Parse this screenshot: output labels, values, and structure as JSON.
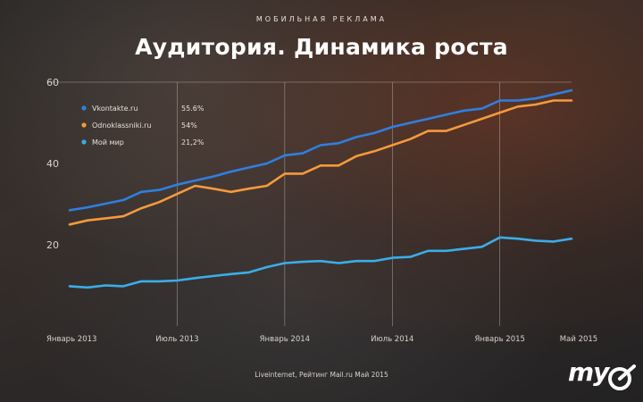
{
  "header": {
    "eyebrow": "МОБИЛЬНАЯ РЕКЛАМА",
    "title": "Аудитория. Динамика роста"
  },
  "footer": {
    "source": "Liveinternet, Рейтинг Mail.ru Май 2015"
  },
  "logo": {
    "text": "my"
  },
  "colors": {
    "vk": "#2f7fe0",
    "ok": "#f59a3c",
    "moimir": "#39aee8",
    "grid": "#e9e4df",
    "axis_text": "#d8d2cc"
  },
  "chart_data": {
    "type": "line",
    "title": "Аудитория. Динамика роста",
    "xlabel": "",
    "ylabel": "",
    "ylim": [
      0,
      60
    ],
    "y_ticks": [
      20,
      40,
      60
    ],
    "grid": true,
    "legend_placement": "top-left",
    "x_ticks": [
      "Январь 2013",
      "Июль 2013",
      "Январь 2014",
      "Июль 2014",
      "Январь 2015",
      "Май 2015"
    ],
    "x_tick_month_index": [
      0,
      6,
      12,
      18,
      24,
      28
    ],
    "series": [
      {
        "name": "Vkontakte.ru",
        "legend_value": "55.6%",
        "color_key": "vk",
        "values": [
          28.5,
          29.2,
          30.1,
          31.0,
          33.0,
          33.5,
          34.8,
          35.8,
          36.8,
          38.0,
          39.0,
          40.0,
          42.0,
          42.5,
          44.5,
          45.0,
          46.5,
          47.5,
          49.0,
          50.0,
          51.0,
          52.0,
          53.0,
          53.5,
          55.5,
          55.5,
          56.0,
          57.0,
          58.0
        ]
      },
      {
        "name": "Odnoklassniki.ru",
        "legend_value": "54%",
        "color_key": "ok",
        "values": [
          25.0,
          26.0,
          26.5,
          27.0,
          29.0,
          30.5,
          32.5,
          34.5,
          33.8,
          33.0,
          33.8,
          34.5,
          37.5,
          37.5,
          39.5,
          39.5,
          41.8,
          43.0,
          44.5,
          46.0,
          48.0,
          48.0,
          49.5,
          51.0,
          52.5,
          54.0,
          54.5,
          55.5,
          55.5
        ]
      },
      {
        "name": "Мой мир",
        "legend_value": "21,2%",
        "color_key": "moimir",
        "values": [
          9.8,
          9.5,
          10.0,
          9.8,
          11.0,
          11.0,
          11.2,
          11.8,
          12.3,
          12.8,
          13.2,
          14.5,
          15.5,
          15.8,
          16.0,
          15.5,
          16.0,
          16.0,
          16.8,
          17.0,
          18.5,
          18.5,
          19.0,
          19.5,
          21.8,
          21.5,
          21.0,
          20.8,
          21.5
        ]
      }
    ]
  }
}
